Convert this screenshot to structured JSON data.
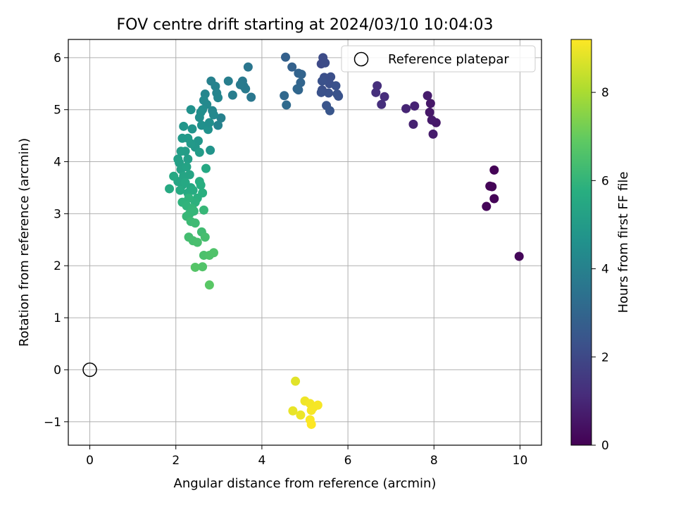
{
  "chart_data": {
    "type": "scatter",
    "title": "FOV centre drift starting at 2024/03/10 10:04:03",
    "xlabel": "Angular distance from reference (arcmin)",
    "ylabel": "Rotation from reference (arcmin)",
    "xlim": [
      -0.5,
      10.5
    ],
    "ylim": [
      -1.45,
      6.35
    ],
    "xticks": [
      "0",
      "2",
      "4",
      "6",
      "8",
      "10"
    ],
    "yticks": [
      "−1",
      "0",
      "1",
      "2",
      "3",
      "4",
      "5",
      "6"
    ],
    "grid": true,
    "legend": {
      "position": "top-right",
      "entries": [
        "Reference platepar"
      ]
    },
    "reference": {
      "name": "Reference platepar",
      "x": 0,
      "y": 0
    },
    "colorbar": {
      "label": "Hours from first FF file",
      "min": 0,
      "max": 9.2,
      "ticks": [
        "0",
        "2",
        "4",
        "6",
        "8"
      ],
      "colormap": "viridis"
    },
    "points": [
      [
        9.98,
        2.18,
        0.15
      ],
      [
        9.4,
        3.84,
        0.05
      ],
      [
        9.3,
        3.53,
        0.1
      ],
      [
        9.35,
        3.52,
        0.1
      ],
      [
        9.22,
        3.14,
        0.12
      ],
      [
        9.4,
        3.29,
        0.08
      ],
      [
        8.05,
        4.75,
        0.6
      ],
      [
        7.98,
        4.53,
        0.7
      ],
      [
        7.95,
        4.8,
        0.65
      ],
      [
        7.9,
        4.95,
        0.6
      ],
      [
        7.92,
        5.12,
        0.6
      ],
      [
        7.85,
        5.27,
        0.7
      ],
      [
        7.55,
        5.07,
        0.9
      ],
      [
        7.52,
        4.72,
        0.85
      ],
      [
        7.35,
        5.02,
        0.95
      ],
      [
        6.85,
        5.25,
        1.15
      ],
      [
        6.78,
        5.1,
        1.2
      ],
      [
        6.68,
        5.46,
        1.2
      ],
      [
        6.65,
        5.33,
        1.25
      ],
      [
        5.42,
        6.0,
        2.1
      ],
      [
        5.38,
        5.88,
        2.05
      ],
      [
        5.47,
        5.9,
        2.1
      ],
      [
        5.52,
        5.6,
        2.2
      ],
      [
        5.6,
        5.63,
        2.2
      ],
      [
        5.57,
        5.5,
        2.25
      ],
      [
        5.72,
        5.46,
        2.3
      ],
      [
        5.78,
        5.26,
        2.35
      ],
      [
        5.75,
        5.3,
        2.35
      ],
      [
        5.55,
        5.32,
        2.3
      ],
      [
        5.4,
        5.38,
        2.25
      ],
      [
        5.38,
        5.33,
        2.3
      ],
      [
        5.5,
        5.08,
        2.4
      ],
      [
        5.58,
        4.98,
        2.45
      ],
      [
        5.45,
        5.62,
        2.2
      ],
      [
        5.4,
        5.55,
        2.3
      ],
      [
        4.55,
        6.01,
        2.8
      ],
      [
        4.7,
        5.82,
        2.85
      ],
      [
        4.85,
        5.7,
        2.9
      ],
      [
        4.92,
        5.68,
        2.95
      ],
      [
        4.9,
        5.52,
        3.0
      ],
      [
        4.85,
        5.38,
        3.0
      ],
      [
        4.82,
        5.4,
        3.05
      ],
      [
        4.52,
        5.27,
        3.1
      ],
      [
        4.57,
        5.09,
        3.15
      ],
      [
        3.68,
        5.82,
        3.6
      ],
      [
        3.75,
        5.24,
        3.65
      ],
      [
        3.55,
        5.55,
        3.7
      ],
      [
        3.58,
        5.45,
        3.75
      ],
      [
        3.62,
        5.4,
        3.75
      ],
      [
        3.5,
        5.48,
        3.8
      ],
      [
        3.32,
        5.28,
        3.85
      ],
      [
        3.22,
        5.55,
        3.9
      ],
      [
        3.05,
        4.84,
        4.0
      ],
      [
        2.98,
        4.7,
        4.05
      ],
      [
        2.82,
        5.55,
        4.0
      ],
      [
        2.92,
        5.45,
        4.05
      ],
      [
        2.95,
        5.32,
        4.1
      ],
      [
        2.98,
        5.23,
        4.15
      ],
      [
        2.85,
        4.98,
        4.2
      ],
      [
        2.88,
        4.9,
        4.25
      ],
      [
        2.72,
        5.1,
        4.3
      ],
      [
        2.68,
        5.3,
        4.2
      ],
      [
        2.65,
        5.18,
        4.3
      ],
      [
        2.62,
        5.0,
        4.4
      ],
      [
        2.58,
        4.95,
        4.5
      ],
      [
        2.55,
        4.85,
        4.5
      ],
      [
        2.6,
        4.7,
        4.55
      ],
      [
        2.75,
        4.62,
        4.6
      ],
      [
        2.78,
        4.75,
        4.5
      ],
      [
        2.8,
        4.22,
        4.7
      ],
      [
        2.35,
        5.0,
        4.6
      ],
      [
        2.38,
        4.63,
        4.7
      ],
      [
        2.52,
        4.4,
        4.8
      ],
      [
        2.45,
        4.28,
        4.85
      ],
      [
        2.35,
        4.35,
        4.9
      ],
      [
        2.28,
        4.45,
        4.95
      ],
      [
        2.18,
        4.68,
        4.8
      ],
      [
        2.15,
        4.45,
        4.9
      ],
      [
        2.55,
        4.18,
        5.0
      ],
      [
        2.28,
        4.05,
        5.1
      ],
      [
        2.22,
        4.2,
        5.05
      ],
      [
        2.12,
        4.2,
        5.1
      ],
      [
        2.05,
        4.05,
        5.15
      ],
      [
        2.08,
        3.98,
        5.2
      ],
      [
        2.12,
        3.85,
        5.25
      ],
      [
        2.25,
        3.9,
        5.3
      ],
      [
        2.32,
        3.75,
        5.35
      ],
      [
        2.18,
        3.72,
        5.35
      ],
      [
        2.05,
        3.62,
        5.4
      ],
      [
        2.15,
        3.55,
        5.45
      ],
      [
        2.22,
        3.6,
        5.5
      ],
      [
        2.35,
        3.5,
        5.5
      ],
      [
        2.7,
        3.87,
        5.5
      ],
      [
        1.95,
        3.72,
        5.5
      ],
      [
        1.85,
        3.48,
        5.55
      ],
      [
        2.1,
        3.45,
        5.6
      ],
      [
        2.28,
        3.4,
        5.6
      ],
      [
        2.4,
        3.45,
        5.65
      ],
      [
        2.55,
        3.62,
        5.7
      ],
      [
        2.58,
        3.55,
        5.75
      ],
      [
        2.5,
        3.3,
        5.8
      ],
      [
        2.62,
        3.4,
        5.8
      ],
      [
        2.45,
        3.22,
        5.85
      ],
      [
        2.3,
        3.3,
        5.9
      ],
      [
        2.15,
        3.22,
        5.9
      ],
      [
        2.25,
        3.15,
        5.95
      ],
      [
        2.38,
        3.1,
        6.0
      ],
      [
        2.42,
        3.05,
        6.05
      ],
      [
        2.32,
        3.0,
        6.05
      ],
      [
        2.25,
        2.95,
        6.1
      ],
      [
        2.65,
        3.07,
        6.1
      ],
      [
        2.35,
        2.85,
        6.2
      ],
      [
        2.45,
        2.82,
        6.25
      ],
      [
        2.6,
        2.65,
        6.3
      ],
      [
        2.3,
        2.55,
        6.35
      ],
      [
        2.4,
        2.48,
        6.4
      ],
      [
        2.5,
        2.45,
        6.45
      ],
      [
        2.68,
        2.55,
        6.4
      ],
      [
        2.65,
        2.2,
        6.5
      ],
      [
        2.78,
        2.2,
        6.55
      ],
      [
        2.88,
        2.25,
        6.6
      ],
      [
        2.62,
        1.98,
        6.65
      ],
      [
        2.45,
        1.97,
        6.7
      ],
      [
        2.78,
        1.63,
        6.8
      ],
      [
        4.78,
        -0.22,
        8.8
      ],
      [
        4.72,
        -0.79,
        8.9
      ],
      [
        4.9,
        -0.87,
        8.95
      ],
      [
        5.0,
        -0.6,
        9.0
      ],
      [
        5.12,
        -0.65,
        9.05
      ],
      [
        5.2,
        -0.72,
        9.05
      ],
      [
        5.3,
        -0.68,
        9.1
      ],
      [
        5.15,
        -0.78,
        9.1
      ],
      [
        5.12,
        -0.96,
        9.15
      ],
      [
        5.15,
        -1.05,
        9.2
      ]
    ]
  }
}
